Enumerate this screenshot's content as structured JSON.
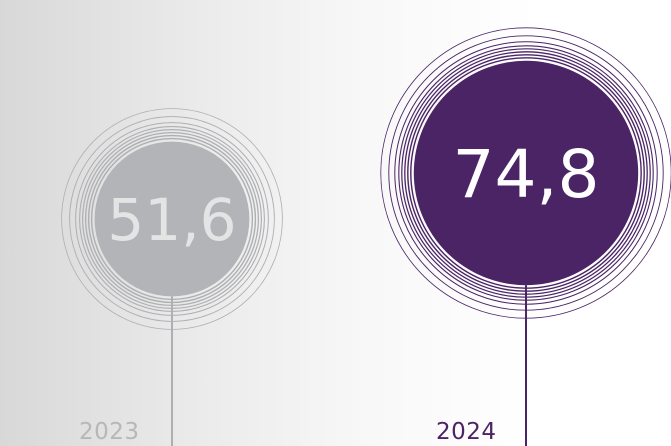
{
  "chart_data": {
    "type": "bubble",
    "categories": [
      "2023",
      "2024"
    ],
    "values": [
      51.6,
      74.8
    ],
    "value_labels": [
      "51,6",
      "74,8"
    ],
    "highlight": "2024",
    "colors": {
      "past": "#b3b4b7",
      "past_ring": "#aeafb2",
      "current": "#4b2466",
      "value_text_past": "#e4e4e5",
      "value_text_current": "#ffffff"
    }
  }
}
